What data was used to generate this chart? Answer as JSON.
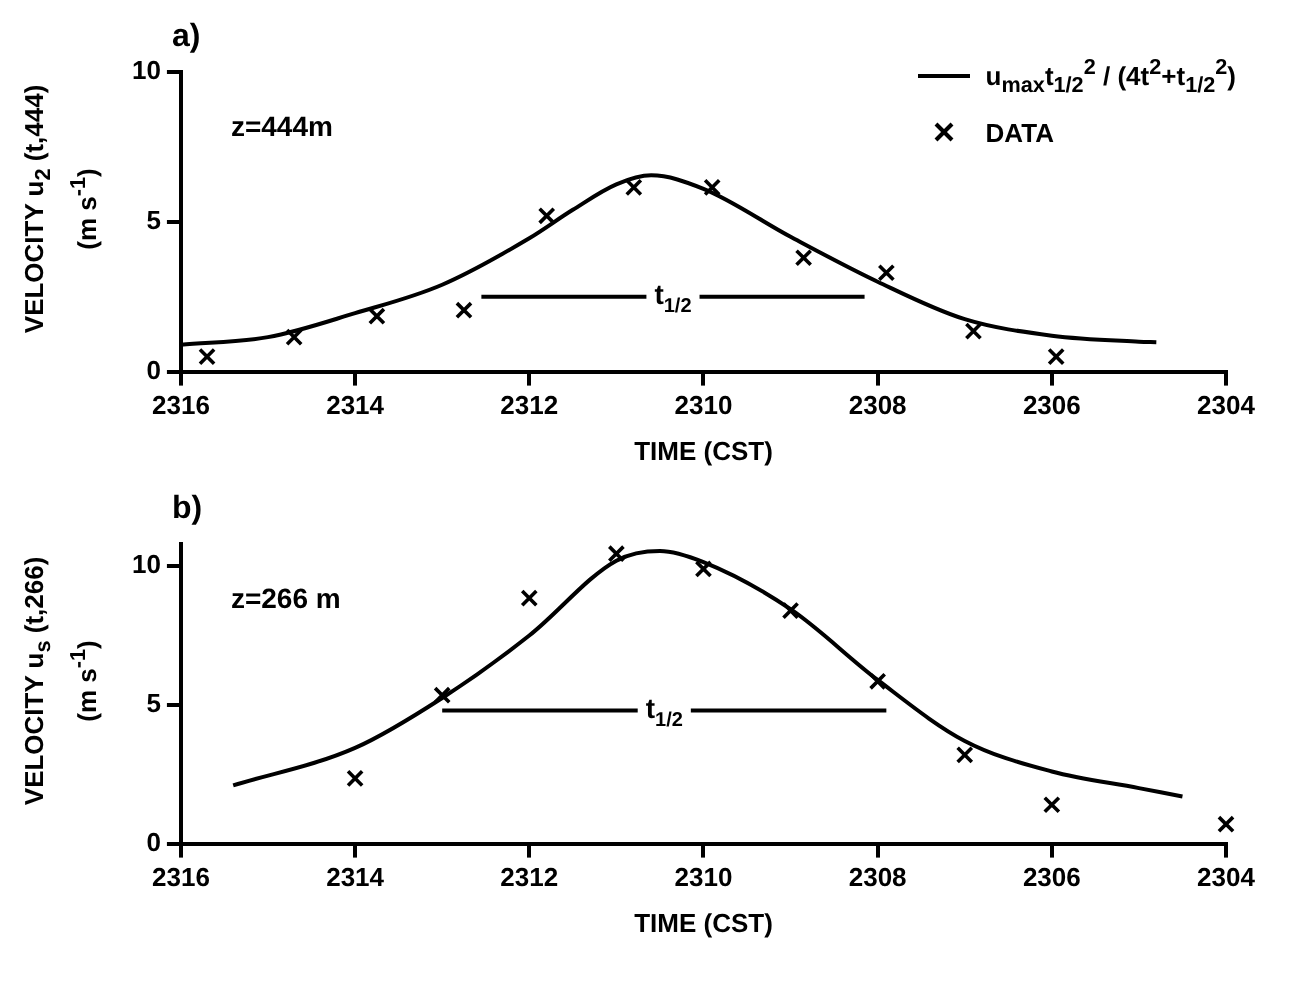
{
  "chart_data": [
    {
      "type": "scatter",
      "title": "a)",
      "xlabel": "TIME (CST)",
      "ylabel": "VELOCITY u$_{2}$ (t,444)\n(m s$^{-1}$)",
      "xlim": [
        2316,
        2304
      ],
      "xticks": [
        2316,
        2314,
        2312,
        2310,
        2308,
        2306,
        2304
      ],
      "ylim": [
        0,
        10
      ],
      "yticks": [
        0,
        5,
        10
      ],
      "grid": false,
      "legend": "top right",
      "annotations": [
        "z=444m",
        {
          "text": "t$_{1/2}$",
          "x": 2310.35,
          "y": 2.5
        }
      ],
      "series": [
        {
          "name": "u$_{max}$t$_{1/2}$$^{2}$ / (4t$^{2}$+t$_{1/2}$$^{2}$)",
          "type": "line",
          "color": "#000000",
          "marker": "none",
          "x": [
            2316,
            2315,
            2314,
            2313,
            2312,
            2311.5,
            2311,
            2310.6,
            2310,
            2309,
            2308,
            2307,
            2306,
            2305,
            2304.8
          ],
          "values": [
            0.9,
            1.15,
            1.95,
            2.9,
            4.45,
            5.4,
            6.25,
            6.55,
            6.1,
            4.5,
            3.0,
            1.75,
            1.2,
            1.0,
            0.98
          ]
        },
        {
          "name": "DATA",
          "type": "scatter",
          "color": "#000000",
          "marker": "cross",
          "x": [
            2315.7,
            2314.7,
            2313.75,
            2312.75,
            2311.8,
            2310.8,
            2309.9,
            2308.85,
            2307.9,
            2306.9,
            2305.95
          ],
          "values": [
            0.5,
            1.15,
            1.85,
            2.05,
            5.2,
            6.15,
            6.15,
            3.8,
            3.3,
            1.35,
            0.5
          ]
        },
        {
          "type": "line",
          "color": "#000000",
          "marker": "none",
          "x": [
            2312.55,
            2308.15
          ],
          "values": [
            2.5,
            2.5
          ]
        }
      ]
    },
    {
      "type": "scatter",
      "title": "b)",
      "xlabel": "TIME (CST)",
      "ylabel": "VELOCITY u$_{s}$ (t,266)\n(m s$^{-1}$)",
      "xlim": [
        2316,
        2304
      ],
      "xticks": [
        2316,
        2314,
        2312,
        2310,
        2308,
        2306,
        2304
      ],
      "ylim": [
        0,
        10.8
      ],
      "yticks": [
        0,
        5,
        10
      ],
      "grid": false,
      "legend": false,
      "annotations": [
        "z=266 m",
        {
          "text": "t$_{1/2}$",
          "x": 2310.45,
          "y": 4.8
        }
      ],
      "series": [
        {
          "type": "line",
          "color": "#000000",
          "marker": "none",
          "x": [
            2315.4,
            2314,
            2313,
            2312,
            2311,
            2310.5,
            2310,
            2309,
            2308,
            2307,
            2306,
            2305,
            2304.5
          ],
          "values": [
            2.1,
            3.45,
            5.25,
            7.5,
            10.2,
            10.55,
            10.15,
            8.45,
            5.9,
            3.7,
            2.6,
            2.0,
            1.7
          ]
        },
        {
          "type": "scatter",
          "color": "#000000",
          "marker": "cross",
          "x": [
            2314,
            2313,
            2312,
            2311,
            2310,
            2309,
            2308,
            2307,
            2306,
            2304
          ],
          "values": [
            2.35,
            5.35,
            8.85,
            10.45,
            9.9,
            8.4,
            5.85,
            3.2,
            1.4,
            0.7
          ]
        },
        {
          "type": "line",
          "color": "#000000",
          "marker": "none",
          "x": [
            2313,
            2307.9
          ],
          "values": [
            4.8,
            4.8
          ]
        }
      ]
    }
  ]
}
